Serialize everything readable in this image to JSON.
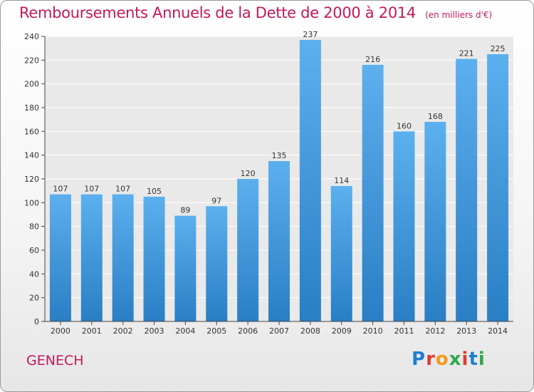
{
  "header": {
    "title": "Remboursements Annuels de la Dette de 2000 à 2014",
    "unit": "(en milliers d'€)"
  },
  "footer": {
    "place": "GENECH",
    "logo": {
      "letters": [
        "P",
        "r",
        "o",
        "x",
        "i",
        "t",
        "i"
      ],
      "colors": [
        "#1f7fd1",
        "#e63a2e",
        "#f29a1f",
        "#2ea84a",
        "#e63a2e",
        "#1f7fd1",
        "#2ea84a"
      ]
    }
  },
  "chart_data": {
    "type": "bar",
    "categories": [
      "2000",
      "2001",
      "2002",
      "2003",
      "2004",
      "2005",
      "2006",
      "2007",
      "2008",
      "2009",
      "2010",
      "2011",
      "2012",
      "2013",
      "2014"
    ],
    "values": [
      107,
      107,
      107,
      105,
      89,
      97,
      120,
      135,
      237,
      114,
      216,
      160,
      168,
      221,
      225
    ],
    "ylim": [
      0,
      240
    ],
    "yticks": [
      0,
      20,
      40,
      60,
      80,
      100,
      120,
      140,
      160,
      180,
      200,
      220,
      240
    ],
    "grid": true,
    "bar_color": "#3a8fd6",
    "title_color": "#c2185b"
  }
}
